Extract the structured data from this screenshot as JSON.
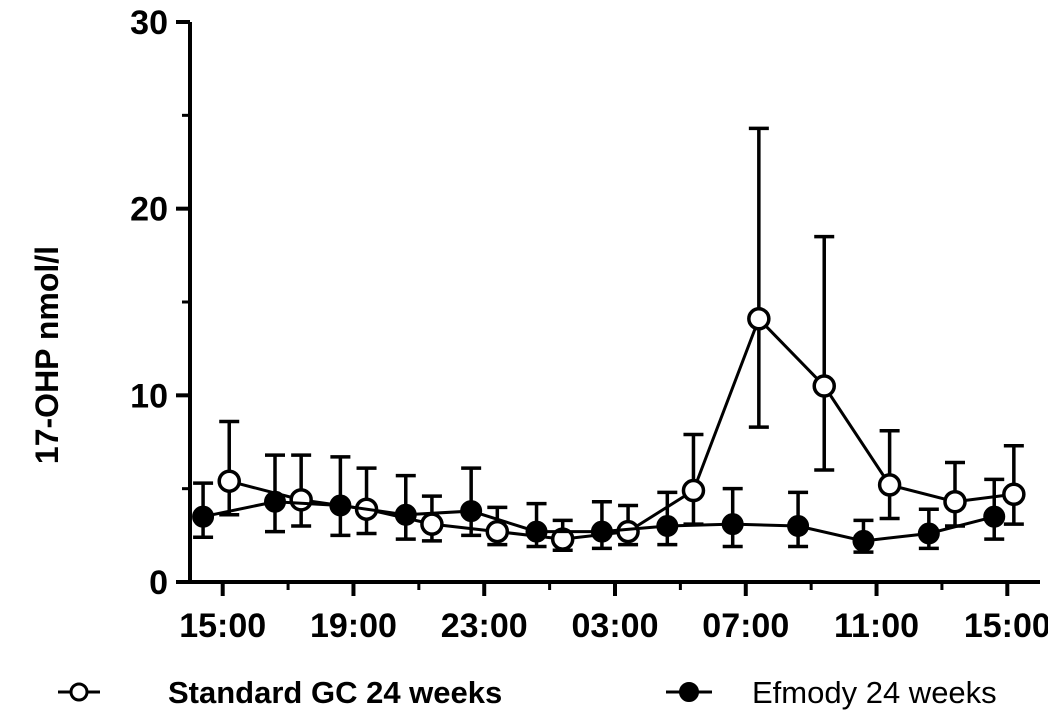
{
  "chart_data": {
    "type": "line",
    "title": "",
    "xlabel": "",
    "ylabel": "17-OHP nmol/l",
    "ylim": [
      0,
      30
    ],
    "y_ticks": [
      0,
      10,
      20,
      30
    ],
    "x_tick_labels": [
      "15:00",
      "19:00",
      "23:00",
      "03:00",
      "07:00",
      "11:00",
      "15:00"
    ],
    "x_tick_hours": [
      15,
      19,
      23,
      27,
      31,
      35,
      39
    ],
    "xlim_hours": [
      14,
      40
    ],
    "series": [
      {
        "name": "Standard GC 24 weeks",
        "marker": "open-circle",
        "x_hours": [
          15.2,
          17.4,
          19.4,
          21.4,
          23.4,
          25.4,
          27.4,
          29.4,
          31.4,
          33.4,
          35.4,
          37.4,
          39.2
        ],
        "values": [
          5.4,
          4.4,
          3.9,
          3.1,
          2.7,
          2.3,
          2.7,
          4.9,
          14.1,
          10.5,
          5.2,
          4.3,
          4.7
        ],
        "err_low": [
          3.6,
          3.0,
          2.6,
          2.2,
          2.0,
          1.7,
          2.0,
          3.1,
          8.3,
          6.0,
          3.4,
          3.0,
          3.1
        ],
        "err_high": [
          8.6,
          6.8,
          6.1,
          4.6,
          4.0,
          3.3,
          4.1,
          7.9,
          24.3,
          18.5,
          8.1,
          6.4,
          7.3
        ]
      },
      {
        "name": "Efmody 24 weeks",
        "marker": "filled-circle",
        "x_hours": [
          14.4,
          16.6,
          18.6,
          20.6,
          22.6,
          24.6,
          26.6,
          28.6,
          30.6,
          32.6,
          34.6,
          36.6,
          38.6
        ],
        "values": [
          3.5,
          4.3,
          4.1,
          3.6,
          3.8,
          2.7,
          2.7,
          3.0,
          3.1,
          3.0,
          2.2,
          2.6,
          3.5
        ],
        "err_low": [
          2.4,
          2.7,
          2.5,
          2.3,
          2.5,
          1.9,
          1.8,
          2.0,
          1.9,
          1.9,
          1.6,
          1.8,
          2.3
        ],
        "err_high": [
          5.3,
          6.8,
          6.7,
          5.7,
          6.1,
          4.2,
          4.3,
          4.8,
          5.0,
          4.8,
          3.3,
          3.9,
          5.5
        ]
      }
    ],
    "legend_position": "bottom",
    "grid": false
  }
}
